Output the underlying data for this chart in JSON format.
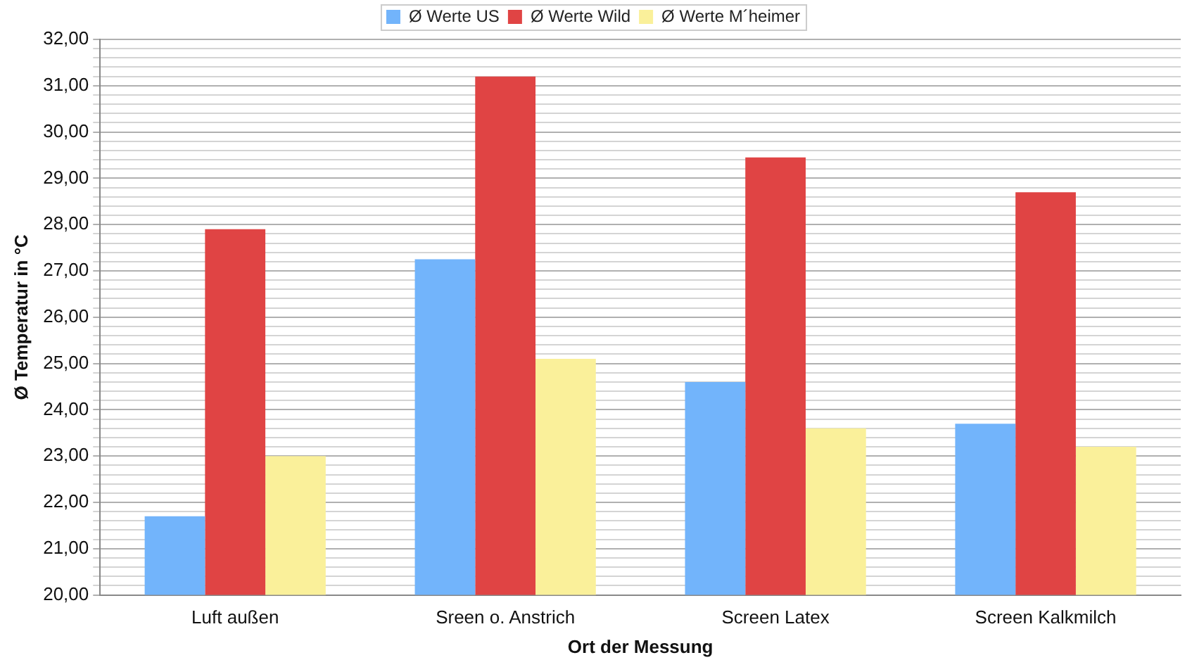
{
  "chart_data": {
    "type": "bar",
    "xlabel": "Ort der Messung",
    "ylabel": "Ø Temperatur in °C",
    "categories": [
      "Luft außen",
      "Sreen o. Anstrich",
      "Screen Latex",
      "Screen Kalkmilch"
    ],
    "series": [
      {
        "name": "Ø Werte US",
        "color": "#72b4fb",
        "values": [
          21.7,
          27.25,
          24.6,
          23.7
        ]
      },
      {
        "name": "Ø Werte Wild",
        "color": "#e04444",
        "values": [
          27.9,
          31.2,
          29.45,
          28.7
        ]
      },
      {
        "name": "Ø Werte M´heimer",
        "color": "#faf09a",
        "values": [
          23.0,
          25.1,
          23.6,
          23.2
        ]
      }
    ],
    "ylim": [
      20,
      32
    ],
    "yticks": [
      {
        "value": 20,
        "label": "20,00"
      },
      {
        "value": 20.2,
        "label": null
      },
      {
        "value": 20.4,
        "label": null
      },
      {
        "value": 20.6,
        "label": null
      },
      {
        "value": 20.8,
        "label": null
      },
      {
        "value": 21,
        "label": "21,00"
      },
      {
        "value": 21.2,
        "label": null
      },
      {
        "value": 21.4,
        "label": null
      },
      {
        "value": 21.6,
        "label": null
      },
      {
        "value": 21.8,
        "label": null
      },
      {
        "value": 22,
        "label": "22,00"
      },
      {
        "value": 22.2,
        "label": null
      },
      {
        "value": 22.4,
        "label": null
      },
      {
        "value": 22.6,
        "label": null
      },
      {
        "value": 22.8,
        "label": null
      },
      {
        "value": 23,
        "label": "23,00"
      },
      {
        "value": 23.2,
        "label": null
      },
      {
        "value": 23.4,
        "label": null
      },
      {
        "value": 23.6,
        "label": null
      },
      {
        "value": 23.8,
        "label": null
      },
      {
        "value": 24,
        "label": "24,00"
      },
      {
        "value": 24.2,
        "label": null
      },
      {
        "value": 24.4,
        "label": null
      },
      {
        "value": 24.6,
        "label": null
      },
      {
        "value": 24.8,
        "label": null
      },
      {
        "value": 25,
        "label": "25,00"
      },
      {
        "value": 25.2,
        "label": null
      },
      {
        "value": 25.4,
        "label": null
      },
      {
        "value": 25.6,
        "label": null
      },
      {
        "value": 25.8,
        "label": null
      },
      {
        "value": 26,
        "label": "26,00"
      },
      {
        "value": 26.2,
        "label": null
      },
      {
        "value": 26.4,
        "label": null
      },
      {
        "value": 26.6,
        "label": null
      },
      {
        "value": 26.8,
        "label": null
      },
      {
        "value": 27,
        "label": "27,00"
      },
      {
        "value": 27.2,
        "label": null
      },
      {
        "value": 27.4,
        "label": null
      },
      {
        "value": 27.6,
        "label": null
      },
      {
        "value": 27.8,
        "label": null
      },
      {
        "value": 28,
        "label": "28,00"
      },
      {
        "value": 28.2,
        "label": null
      },
      {
        "value": 28.4,
        "label": null
      },
      {
        "value": 28.6,
        "label": null
      },
      {
        "value": 28.8,
        "label": null
      },
      {
        "value": 29,
        "label": "29,00"
      },
      {
        "value": 29.2,
        "label": null
      },
      {
        "value": 29.4,
        "label": null
      },
      {
        "value": 29.6,
        "label": null
      },
      {
        "value": 29.8,
        "label": null
      },
      {
        "value": 30,
        "label": "30,00"
      },
      {
        "value": 30.2,
        "label": null
      },
      {
        "value": 30.4,
        "label": null
      },
      {
        "value": 30.6,
        "label": null
      },
      {
        "value": 30.8,
        "label": null
      },
      {
        "value": 31,
        "label": "31,00"
      },
      {
        "value": 31.2,
        "label": null
      },
      {
        "value": 31.4,
        "label": null
      },
      {
        "value": 31.6,
        "label": null
      },
      {
        "value": 31.8,
        "label": null
      },
      {
        "value": 32,
        "label": "32,00"
      }
    ],
    "grid": "y",
    "legend": "top"
  }
}
